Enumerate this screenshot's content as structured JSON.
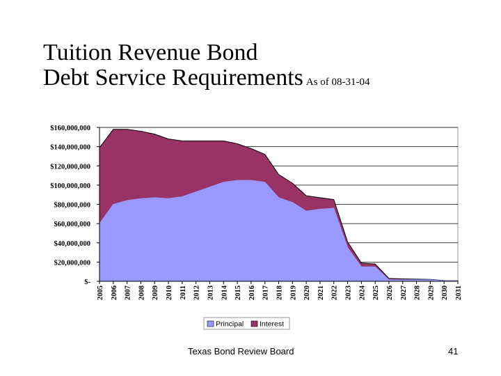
{
  "slide": {
    "title_line1": "Tuition Revenue Bond",
    "title_line2": "Debt Service Requirements",
    "subtitle": "As of 08-31-04",
    "footer": "Texas Bond Review Board",
    "page_number": "41"
  },
  "chart_data": {
    "type": "area",
    "stacked": true,
    "categories": [
      "2005",
      "2006",
      "2007",
      "2008",
      "2009",
      "2010",
      "2011",
      "2012",
      "2013",
      "2014",
      "2015",
      "2016",
      "2017",
      "2018",
      "2019",
      "2020",
      "2021",
      "2022",
      "2023",
      "2024",
      "2025",
      "2026",
      "2027",
      "2028",
      "2029",
      "2030",
      "2031"
    ],
    "series": [
      {
        "name": "Principal",
        "color": "#9999ff",
        "values": [
          60000000,
          80000000,
          84000000,
          86000000,
          87000000,
          86000000,
          88000000,
          93000000,
          98000000,
          103000000,
          105000000,
          105000000,
          103000000,
          87000000,
          82000000,
          73000000,
          75000000,
          76000000,
          35000000,
          15000000,
          15000000,
          1500000,
          1500000,
          1500000,
          1500000,
          500000,
          500000
        ]
      },
      {
        "name": "Interest",
        "color": "#993366",
        "values": [
          79000000,
          78000000,
          74000000,
          70000000,
          66000000,
          62000000,
          58000000,
          53000000,
          48000000,
          43000000,
          38000000,
          33000000,
          29000000,
          24000000,
          20000000,
          16000000,
          12000000,
          9000000,
          6000000,
          4000000,
          3000000,
          1500000,
          1000000,
          800000,
          500000,
          300000,
          200000
        ]
      }
    ],
    "y_tick_labels": [
      "$-",
      "$20,000,000",
      "$40,000,000",
      "$60,000,000",
      "$80,000,000",
      "$100,000,000",
      "$120,000,000",
      "$140,000,000",
      "$160,000,000"
    ],
    "ylim": [
      0,
      160000000
    ],
    "y_gridlines": [
      20000000,
      40000000,
      60000000,
      80000000,
      100000000,
      120000000,
      140000000,
      160000000
    ],
    "grid": true,
    "legend_position": "bottom"
  }
}
